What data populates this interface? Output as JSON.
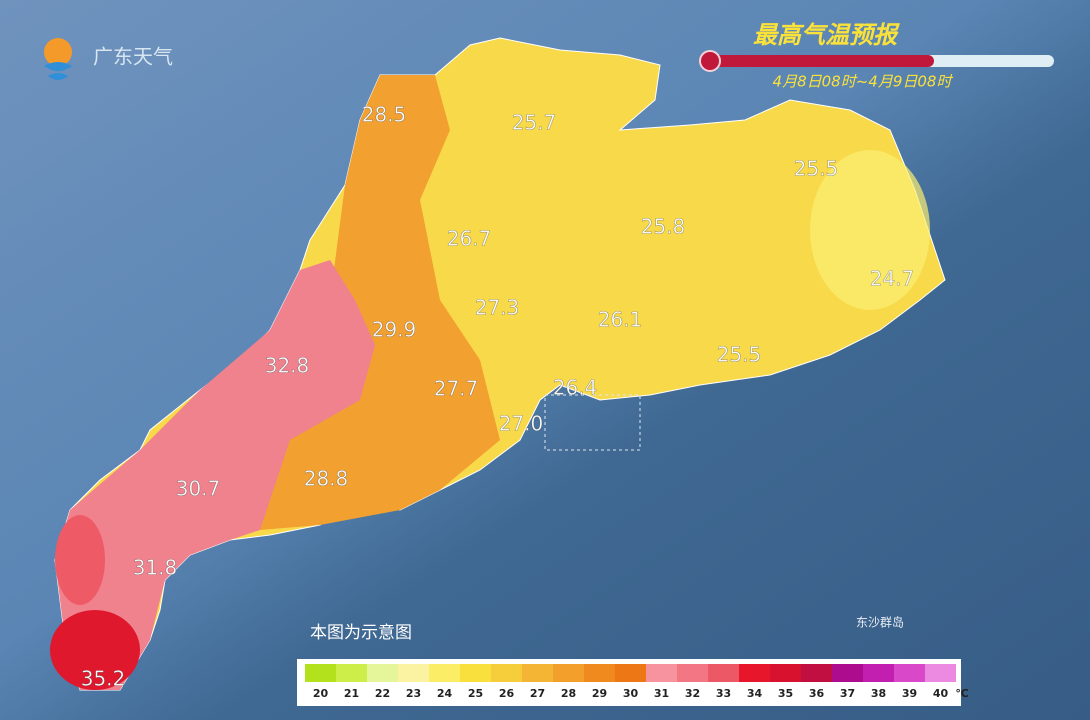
{
  "header": {
    "logo": "广东天气",
    "title": "最高气温预报",
    "subtitle": "4月8日08时~4月9日08时"
  },
  "map": {
    "labels": [
      "28.5",
      "25.7",
      "25.5",
      "26.7",
      "25.8",
      "24.7",
      "27.3",
      "29.9",
      "26.1",
      "32.8",
      "25.5",
      "26.4",
      "27.7",
      "27.0",
      "30.7",
      "28.8",
      "31.8",
      "35.2"
    ],
    "islands": "东沙群岛",
    "note": "本图为示意图"
  },
  "legend": {
    "unit": "℃",
    "items": [
      {
        "value": 20,
        "color": "#b3e21c"
      },
      {
        "value": 21,
        "color": "#cdee48"
      },
      {
        "value": 22,
        "color": "#e4f59a"
      },
      {
        "value": 23,
        "color": "#fbf3a2"
      },
      {
        "value": 24,
        "color": "#fbee66"
      },
      {
        "value": 25,
        "color": "#f9e03c"
      },
      {
        "value": 26,
        "color": "#f6cd3b"
      },
      {
        "value": 27,
        "color": "#f4b535"
      },
      {
        "value": 28,
        "color": "#f29f2b"
      },
      {
        "value": 29,
        "color": "#f08a1e"
      },
      {
        "value": 30,
        "color": "#ec7714"
      },
      {
        "value": 31,
        "color": "#f6939f"
      },
      {
        "value": 32,
        "color": "#f27683"
      },
      {
        "value": 33,
        "color": "#ed5866"
      },
      {
        "value": 34,
        "color": "#e8162a"
      },
      {
        "value": 35,
        "color": "#d8112e"
      },
      {
        "value": 36,
        "color": "#c20f42"
      },
      {
        "value": 37,
        "color": "#ad0c8e"
      },
      {
        "value": 38,
        "color": "#c21fb0"
      },
      {
        "value": 39,
        "color": "#d848c8"
      },
      {
        "value": 40,
        "color": "#ec8ae2"
      }
    ]
  }
}
